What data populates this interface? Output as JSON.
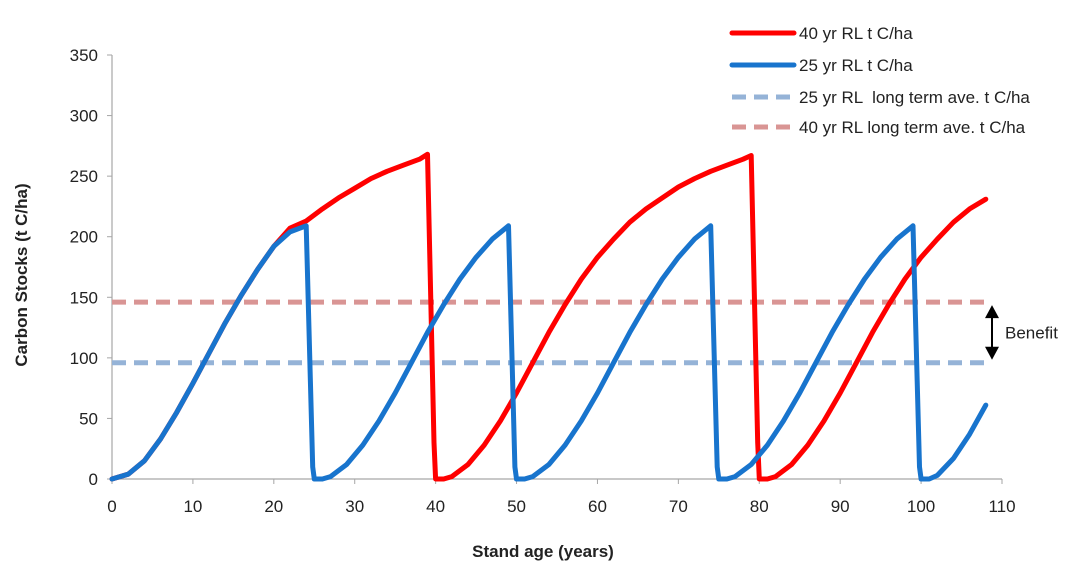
{
  "chart_data": {
    "type": "line",
    "xlabel": "Stand age (years)",
    "ylabel": "Carbon Stocks (t C/ha)",
    "xlim": [
      0,
      110
    ],
    "ylim": [
      0,
      350
    ],
    "x_ticks": [
      0,
      10,
      20,
      30,
      40,
      50,
      60,
      70,
      80,
      90,
      100,
      110
    ],
    "y_ticks": [
      0,
      50,
      100,
      150,
      200,
      250,
      300,
      350
    ],
    "grid": false,
    "legend_position": "top-right",
    "series": [
      {
        "name": "40 yr RL t C/ha",
        "color": "#ff0000",
        "style": "solid",
        "x": [
          0,
          2,
          4,
          6,
          8,
          10,
          12,
          14,
          16,
          18,
          20,
          22,
          24,
          26,
          28,
          30,
          32,
          34,
          36,
          38,
          39,
          39.8,
          40,
          41,
          42,
          44,
          46,
          48,
          50,
          52,
          54,
          56,
          58,
          60,
          62,
          64,
          66,
          68,
          70,
          72,
          74,
          76,
          78,
          79,
          79.8,
          80,
          81,
          82,
          84,
          86,
          88,
          90,
          92,
          94,
          96,
          98,
          100,
          102,
          104,
          106,
          108
        ],
        "y": [
          0,
          4,
          15,
          33,
          55,
          79,
          104,
          129,
          152,
          173,
          192,
          207,
          213,
          223,
          232,
          240,
          248,
          254,
          259,
          264,
          268,
          30,
          0,
          0,
          2,
          12,
          28,
          48,
          71,
          96,
          121,
          144,
          165,
          183,
          198,
          212,
          223,
          232,
          241,
          248,
          254,
          259,
          264,
          267,
          30,
          0,
          0,
          2,
          12,
          28,
          48,
          71,
          96,
          121,
          144,
          165,
          183,
          198,
          212,
          223,
          231
        ]
      },
      {
        "name": "25 yr RL t C/ha",
        "color": "#1874cd",
        "style": "solid",
        "x": [
          0,
          2,
          4,
          6,
          8,
          10,
          12,
          14,
          16,
          18,
          20,
          22,
          24,
          24.8,
          25,
          26,
          27,
          29,
          31,
          33,
          35,
          37,
          39,
          41,
          43,
          45,
          47,
          49,
          49.8,
          50,
          51,
          52,
          54,
          56,
          58,
          60,
          62,
          64,
          66,
          68,
          70,
          72,
          74,
          74.8,
          75,
          76,
          77,
          79,
          81,
          83,
          85,
          87,
          89,
          91,
          93,
          95,
          97,
          99,
          99.8,
          100,
          101,
          102,
          104,
          106,
          108
        ],
        "y": [
          0,
          4,
          15,
          33,
          55,
          79,
          104,
          129,
          152,
          173,
          192,
          204,
          209,
          10,
          0,
          0,
          2,
          12,
          28,
          48,
          71,
          96,
          121,
          144,
          165,
          183,
          198,
          209,
          10,
          0,
          0,
          2,
          12,
          28,
          48,
          71,
          96,
          121,
          144,
          165,
          183,
          198,
          209,
          10,
          0,
          0,
          2,
          12,
          28,
          48,
          71,
          96,
          121,
          144,
          165,
          183,
          198,
          209,
          10,
          0,
          0,
          3,
          17,
          37,
          61
        ]
      },
      {
        "name": "25 yr RL  long term ave. t C/ha",
        "color": "#95b3d7",
        "style": "dashed",
        "x": [
          0,
          108
        ],
        "y": [
          96,
          96
        ]
      },
      {
        "name": "40 yr RL long term ave. t C/ha",
        "color": "#d99594",
        "style": "dashed",
        "x": [
          0,
          108
        ],
        "y": [
          146,
          146
        ]
      }
    ],
    "annotations": [
      {
        "text": "Benefit",
        "arrow_from": 146,
        "arrow_to": 96
      }
    ]
  }
}
